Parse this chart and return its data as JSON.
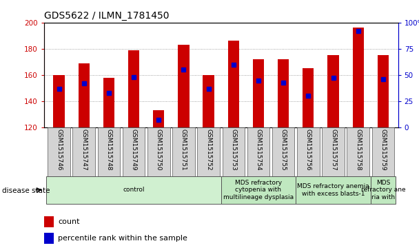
{
  "title": "GDS5622 / ILMN_1781450",
  "samples": [
    "GSM1515746",
    "GSM1515747",
    "GSM1515748",
    "GSM1515749",
    "GSM1515750",
    "GSM1515751",
    "GSM1515752",
    "GSM1515753",
    "GSM1515754",
    "GSM1515755",
    "GSM1515756",
    "GSM1515757",
    "GSM1515758",
    "GSM1515759"
  ],
  "counts": [
    160,
    169,
    158,
    179,
    133,
    183,
    160,
    186,
    172,
    172,
    165,
    175,
    196,
    175
  ],
  "percentile_ranks": [
    37,
    42,
    33,
    48,
    7,
    55,
    37,
    60,
    45,
    43,
    30,
    47,
    92,
    46
  ],
  "y_min": 120,
  "y_max": 200,
  "y_ticks_left": [
    120,
    140,
    160,
    180,
    200
  ],
  "y_ticks_right": [
    0,
    25,
    50,
    75,
    100
  ],
  "bar_color": "#cc0000",
  "dot_color": "#0000cc",
  "bg_color": "#ffffff",
  "axis_color_left": "#cc0000",
  "axis_color_right": "#0000cc",
  "label_bg_color": "#d3d3d3",
  "disease_groups": [
    {
      "label": "control",
      "start": 0,
      "end": 7,
      "color": "#d0f0d0"
    },
    {
      "label": "MDS refractory\ncytopenia with\nmultilineage dysplasia",
      "start": 7,
      "end": 10,
      "color": "#c0e8c0"
    },
    {
      "label": "MDS refractory anemia\nwith excess blasts-1",
      "start": 10,
      "end": 13,
      "color": "#c0e8c0"
    },
    {
      "label": "MDS\nrefractory ane\nria with",
      "start": 13,
      "end": 14,
      "color": "#c0e8c0"
    }
  ],
  "disease_state_label": "disease state",
  "legend_count": "count",
  "legend_percentile": "percentile rank within the sample",
  "dot_size": 4,
  "bar_width": 0.45,
  "grid_color": "#888888",
  "title_fontsize": 10,
  "tick_fontsize": 7.5,
  "label_fontsize": 6.5,
  "disease_fontsize": 6.5
}
